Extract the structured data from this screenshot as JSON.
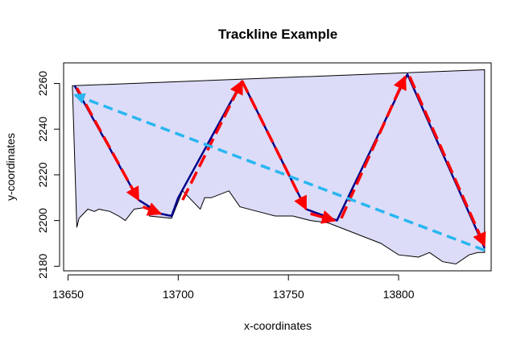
{
  "chart_data": {
    "type": "line",
    "title": "Trackline Example",
    "xlabel": "x-coordinates",
    "ylabel": "y-coordinates",
    "xlim": [
      13648,
      13842
    ],
    "ylim": [
      2178,
      2269
    ],
    "x_ticks": [
      13650,
      13700,
      13750,
      13800
    ],
    "y_ticks": [
      2180,
      2200,
      2220,
      2240,
      2260
    ],
    "grid": false,
    "legend": "none",
    "colors": {
      "polygon_fill": "#dcdcf8",
      "polygon_edge": "#000000",
      "trackline": "#00008b",
      "segment_arrows": "#ff0000",
      "transit_arrow": "#29b6f0"
    },
    "series": [
      {
        "kind": "polygon",
        "points": [
          [
            13652,
            2259
          ],
          [
            13839,
            2266
          ],
          [
            13839,
            2186
          ],
          [
            13836,
            2186
          ],
          [
            13832,
            2185
          ],
          [
            13826,
            2181
          ],
          [
            13820,
            2182
          ],
          [
            13814,
            2186
          ],
          [
            13809,
            2184
          ],
          [
            13800,
            2185
          ],
          [
            13792,
            2190
          ],
          [
            13784,
            2193
          ],
          [
            13776,
            2196
          ],
          [
            13768,
            2199
          ],
          [
            13760,
            2200
          ],
          [
            13752,
            2202
          ],
          [
            13744,
            2202
          ],
          [
            13736,
            2204
          ],
          [
            13728,
            2206
          ],
          [
            13723,
            2213
          ],
          [
            13715,
            2210
          ],
          [
            13712,
            2210
          ],
          [
            13710,
            2205
          ],
          [
            13705,
            2210
          ],
          [
            13702,
            2213
          ],
          [
            13697,
            2201
          ],
          [
            13687,
            2202
          ],
          [
            13687,
            2206
          ],
          [
            13680,
            2205
          ],
          [
            13676,
            2200
          ],
          [
            13673,
            2202
          ],
          [
            13669,
            2204
          ],
          [
            13664,
            2205
          ],
          [
            13662,
            2204
          ],
          [
            13659,
            2205
          ],
          [
            13655,
            2201
          ],
          [
            13654,
            2197
          ],
          [
            13652,
            2259
          ]
        ]
      },
      {
        "kind": "trackline",
        "points": [
          [
            13653,
            2259
          ],
          [
            13682,
            2209
          ],
          [
            13692,
            2203
          ],
          [
            13697,
            2202
          ],
          [
            13700,
            2210
          ],
          [
            13729,
            2261
          ],
          [
            13758,
            2205
          ],
          [
            13772,
            2200
          ],
          [
            13804,
            2264
          ],
          [
            13839,
            2188
          ]
        ]
      },
      {
        "kind": "segment-arrows",
        "arrows": [
          [
            [
              13654,
              2258
            ],
            [
              13682,
              2209
            ]
          ],
          [
            [
              13684,
              2206
            ],
            [
              13692,
              2203
            ]
          ],
          [
            [
              13702,
              2209
            ],
            [
              13729,
              2261
            ]
          ],
          [
            [
              13729,
              2261
            ],
            [
              13758,
              2205
            ]
          ],
          [
            [
              13760,
              2203
            ],
            [
              13771,
              2200
            ]
          ],
          [
            [
              13774,
              2201
            ],
            [
              13803,
              2263
            ]
          ],
          [
            [
              13805,
              2263
            ],
            [
              13839,
              2189
            ]
          ]
        ]
      },
      {
        "kind": "transit-arrow",
        "arrows": [
          [
            [
              13839,
              2187
            ],
            [
              13653,
              2255
            ]
          ]
        ]
      }
    ]
  }
}
